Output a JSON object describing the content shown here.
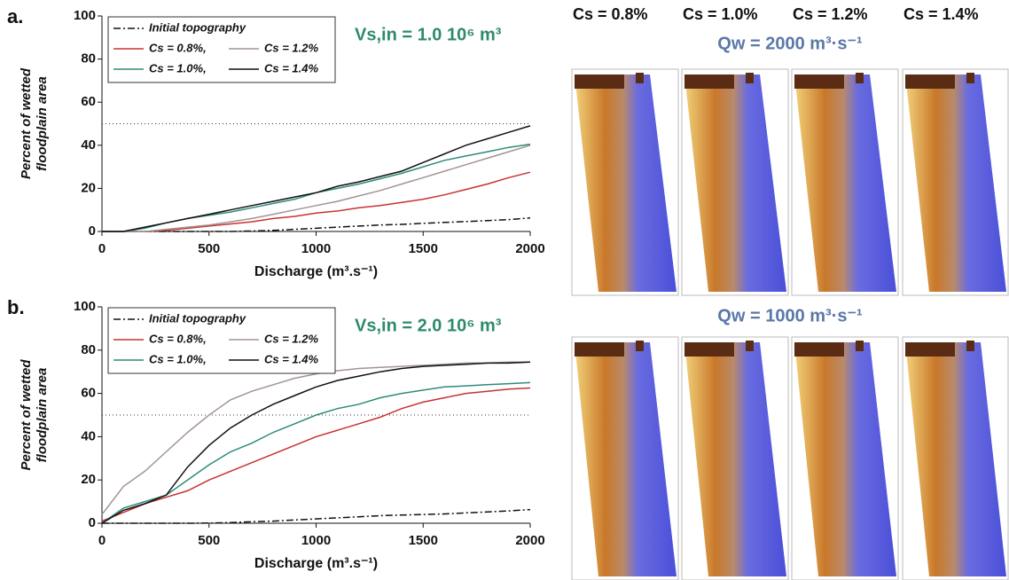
{
  "chart_data": [
    {
      "type": "line",
      "panel_label": "a.",
      "annotation": "Vs,in = 1.0 10⁶ m³",
      "y_label": [
        "Percent of wetted",
        "floodplain area"
      ],
      "x_label": "Discharge (m³.s⁻¹)",
      "x": [
        0,
        100,
        200,
        300,
        400,
        500,
        600,
        700,
        800,
        900,
        1000,
        1100,
        1200,
        1300,
        1400,
        1500,
        1600,
        1700,
        1800,
        1900,
        2000
      ],
      "xlim": [
        0,
        2000
      ],
      "xticks": [
        0,
        500,
        1000,
        1500,
        2000
      ],
      "ylim": [
        0,
        100
      ],
      "yticks": [
        0,
        20,
        40,
        60,
        80,
        100
      ],
      "reference_line": 50,
      "series": [
        {
          "name": "Initial topography",
          "color": "#111111",
          "dash": "dashdot",
          "values": [
            0,
            0,
            0,
            0,
            0,
            0,
            0,
            0.2,
            0.5,
            1,
            1.5,
            2,
            2.5,
            3,
            3.3,
            3.8,
            4.2,
            4.6,
            5,
            5.5,
            6.3
          ]
        },
        {
          "name": "Cs = 0.8%,",
          "color": "#c83232",
          "values": [
            0,
            0,
            0,
            0.5,
            1.5,
            2.5,
            3.5,
            4.5,
            6,
            7,
            8.5,
            9.5,
            11,
            12,
            13.5,
            15,
            17,
            19.5,
            22,
            25,
            27.5
          ]
        },
        {
          "name": "Cs = 1.2%",
          "color": "#a39494",
          "values": [
            0,
            0,
            0,
            1,
            2,
            3,
            4.5,
            6,
            8,
            10,
            12,
            14,
            16.5,
            19,
            22,
            25,
            28,
            31,
            34,
            37,
            40
          ]
        },
        {
          "name": "Cs = 1.0%,",
          "color": "#2e8b7a",
          "values": [
            0,
            0,
            1.5,
            4,
            6,
            7.5,
            9,
            11,
            13,
            15,
            18,
            20,
            22,
            24.5,
            27,
            30,
            33,
            35,
            37,
            39,
            40.5
          ]
        },
        {
          "name": "Cs = 1.4%",
          "color": "#111111",
          "values": [
            0,
            0,
            2,
            4,
            6,
            8,
            10,
            12,
            14,
            16,
            18,
            21,
            23,
            25.5,
            28,
            32,
            36,
            40,
            43,
            46,
            49
          ]
        }
      ]
    },
    {
      "type": "line",
      "panel_label": "b.",
      "annotation": "Vs,in = 2.0 10⁶ m³",
      "y_label": [
        "Percent of wetted",
        "floodplain area"
      ],
      "x_label": "Discharge (m³.s⁻¹)",
      "x": [
        0,
        100,
        200,
        300,
        400,
        500,
        600,
        700,
        800,
        900,
        1000,
        1100,
        1200,
        1300,
        1400,
        1500,
        1600,
        1700,
        1800,
        1900,
        2000
      ],
      "xlim": [
        0,
        2000
      ],
      "xticks": [
        0,
        500,
        1000,
        1500,
        2000
      ],
      "ylim": [
        0,
        100
      ],
      "yticks": [
        0,
        20,
        40,
        60,
        80,
        100
      ],
      "reference_line": 50,
      "series": [
        {
          "name": "Initial topography",
          "color": "#111111",
          "dash": "dashdot",
          "values": [
            0,
            0,
            0,
            0,
            0,
            0.1,
            0.3,
            0.7,
            1,
            1.5,
            2,
            2.5,
            3,
            3.5,
            3.8,
            4,
            4.3,
            4.8,
            5.2,
            5.7,
            6.3
          ]
        },
        {
          "name": "Cs = 0.8%,",
          "color": "#c83232",
          "values": [
            1,
            5,
            9,
            12,
            15,
            20,
            24,
            28,
            32,
            36,
            40,
            43,
            46,
            49,
            53,
            56,
            58,
            60,
            61,
            62,
            62.5
          ]
        },
        {
          "name": "Cs = 1.2%",
          "color": "#a39494",
          "values": [
            4,
            17,
            24,
            33,
            42,
            50,
            57,
            61,
            64,
            67,
            69,
            70.5,
            71.5,
            72,
            72.5,
            73,
            73.5,
            74,
            74,
            74.5,
            74.5
          ]
        },
        {
          "name": "Cs = 1.0%,",
          "color": "#2e8b7a",
          "values": [
            0,
            7,
            10,
            13,
            20,
            27,
            33,
            37,
            42,
            46,
            50,
            53,
            55,
            58,
            60,
            61.5,
            63,
            63.5,
            64,
            64.5,
            65
          ]
        },
        {
          "name": "Cs = 1.4%",
          "color": "#111111",
          "values": [
            0,
            6,
            9,
            13,
            26,
            36,
            44,
            50,
            55,
            59,
            63,
            66,
            68,
            70,
            71.5,
            72.5,
            73,
            73.5,
            74,
            74,
            74.5
          ]
        }
      ]
    }
  ],
  "simulations": {
    "columns": [
      "Cs = 0.8%",
      "Cs = 1.0%",
      "Cs = 1.2%",
      "Cs = 1.4%"
    ],
    "rows": [
      "Qw = 2000 m³·s⁻¹",
      "Qw = 1000 m³·s⁻¹"
    ]
  }
}
